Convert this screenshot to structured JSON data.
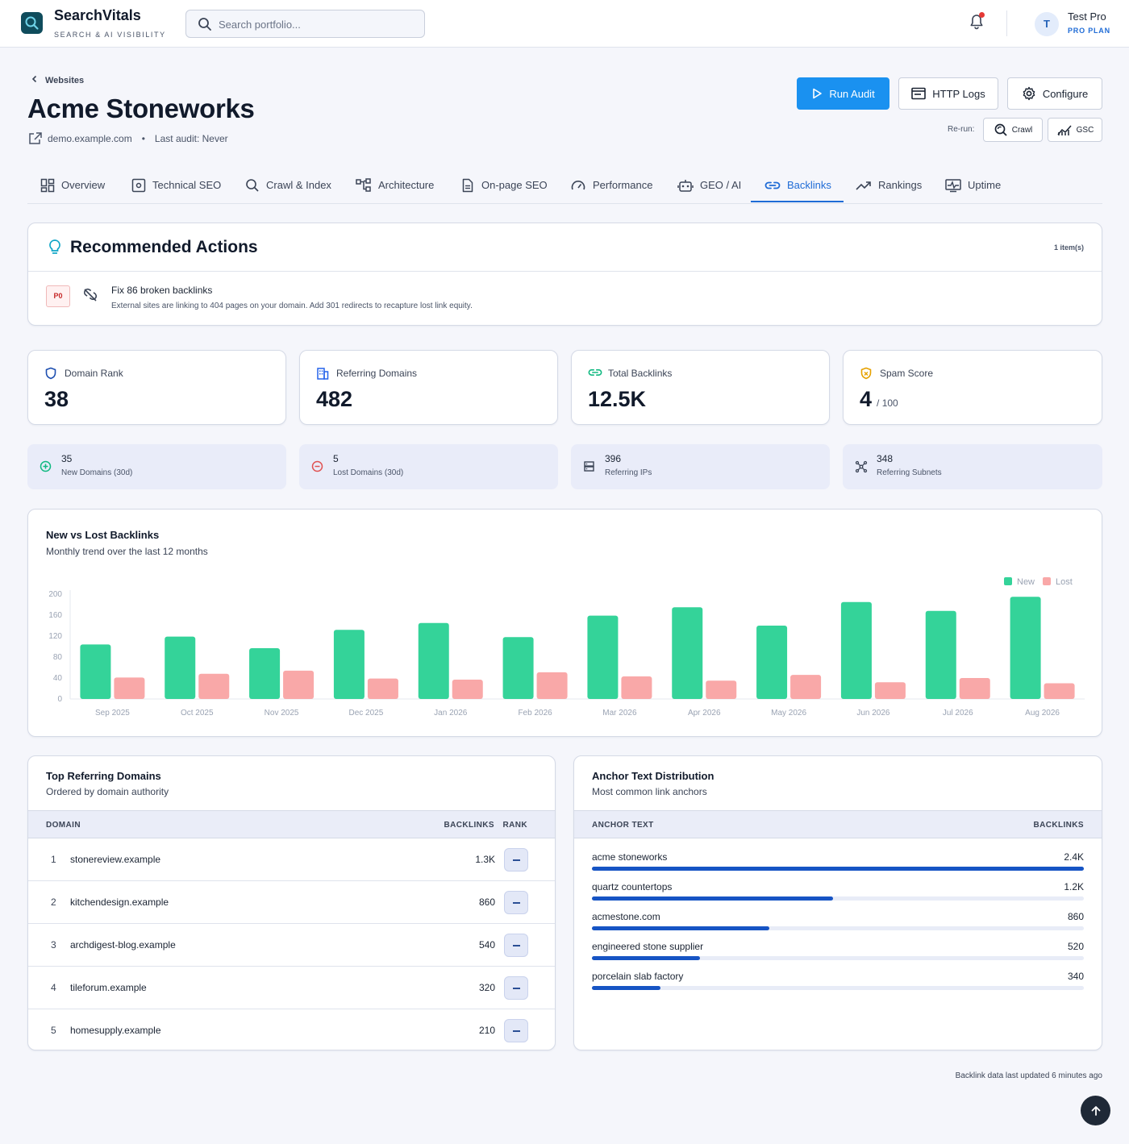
{
  "app": {
    "name": "SearchVitals",
    "tagline": "SEARCH & AI VISIBILITY"
  },
  "search": {
    "placeholder": "Search portfolio...",
    "value": ""
  },
  "user": {
    "initial": "T",
    "name": "Test Pro",
    "plan": "PRO PLAN"
  },
  "breadcrumb": {
    "back_label": "Websites"
  },
  "site": {
    "title": "Acme Stoneworks",
    "domain": "demo.example.com",
    "last_audit": "Last audit: Never"
  },
  "actions": {
    "run_audit": "Run Audit",
    "http_logs": "HTTP Logs",
    "configure": "Configure",
    "rerun_label": "Re-run:",
    "crawl": "Crawl",
    "gsc": "GSC"
  },
  "tabs": [
    {
      "label": "Overview",
      "icon": "dashboard-icon"
    },
    {
      "label": "Technical SEO",
      "icon": "settings-box-icon"
    },
    {
      "label": "Crawl & Index",
      "icon": "search-icon"
    },
    {
      "label": "Architecture",
      "icon": "sitemap-icon"
    },
    {
      "label": "On-page SEO",
      "icon": "document-icon"
    },
    {
      "label": "Performance",
      "icon": "speedometer-icon"
    },
    {
      "label": "GEO / AI",
      "icon": "robot-icon"
    },
    {
      "label": "Backlinks",
      "icon": "link-icon",
      "active": true
    },
    {
      "label": "Rankings",
      "icon": "trend-up-icon"
    },
    {
      "label": "Uptime",
      "icon": "heartbeat-icon"
    }
  ],
  "recommended": {
    "title": "Recommended Actions",
    "count": "1 item(s)",
    "items": [
      {
        "priority": "P0",
        "title": "Fix 86 broken backlinks",
        "description": "External sites are linking to 404 pages on your domain. Add 301 redirects to recapture lost link equity."
      }
    ]
  },
  "kpis": [
    {
      "label": "Domain Rank",
      "value": "38",
      "sub": "",
      "icon": "shield-icon",
      "color": "#1e4fb0"
    },
    {
      "label": "Referring Domains",
      "value": "482",
      "sub": "",
      "icon": "building-icon",
      "color": "#2563eb"
    },
    {
      "label": "Total Backlinks",
      "value": "12.5K",
      "sub": "",
      "icon": "link-icon",
      "color": "#10b981"
    },
    {
      "label": "Spam Score",
      "value": "4",
      "sub": "/ 100",
      "icon": "shield-alert-icon",
      "color": "#e6a100"
    }
  ],
  "mini_stats": [
    {
      "value": "35",
      "label": "New Domains (30d)",
      "icon": "plus-circle-icon",
      "color": "#10b981"
    },
    {
      "value": "5",
      "label": "Lost Domains (30d)",
      "icon": "minus-circle-icon",
      "color": "#e05252"
    },
    {
      "value": "396",
      "label": "Referring IPs",
      "icon": "server-icon",
      "color": "#3b4456"
    },
    {
      "value": "348",
      "label": "Referring Subnets",
      "icon": "network-icon",
      "color": "#3b4456"
    }
  ],
  "chart_data": {
    "type": "bar",
    "title": "New vs Lost Backlinks",
    "subtitle": "Monthly trend over the last 12 months",
    "categories": [
      "Sep 2025",
      "Oct 2025",
      "Nov 2025",
      "Dec 2025",
      "Jan 2026",
      "Feb 2026",
      "Mar 2026",
      "Apr 2026",
      "May 2026",
      "Jun 2026",
      "Jul 2026",
      "Aug 2026"
    ],
    "series": [
      {
        "name": "New",
        "color": "#34d399",
        "values": [
          104,
          119,
          97,
          132,
          145,
          118,
          159,
          175,
          140,
          185,
          168,
          195
        ]
      },
      {
        "name": "Lost",
        "color": "#f9a8a8",
        "values": [
          41,
          48,
          54,
          39,
          37,
          51,
          43,
          35,
          46,
          32,
          40,
          30
        ]
      }
    ],
    "ylim": [
      0,
      200
    ],
    "yticks": [
      0,
      40,
      80,
      120,
      160,
      200
    ],
    "legend": "top-right",
    "grid": false
  },
  "ref_domains": {
    "title": "Top Referring Domains",
    "subtitle": "Ordered by domain authority",
    "headers": {
      "domain": "DOMAIN",
      "backlinks": "BACKLINKS",
      "rank": "RANK"
    },
    "rows": [
      {
        "n": "1",
        "domain": "stonereview.example",
        "backlinks": "1.3K"
      },
      {
        "n": "2",
        "domain": "kitchendesign.example",
        "backlinks": "860"
      },
      {
        "n": "3",
        "domain": "archdigest-blog.example",
        "backlinks": "540"
      },
      {
        "n": "4",
        "domain": "tileforum.example",
        "backlinks": "320"
      },
      {
        "n": "5",
        "domain": "homesupply.example",
        "backlinks": "210"
      }
    ]
  },
  "anchors": {
    "title": "Anchor Text Distribution",
    "subtitle": "Most common link anchors",
    "headers": {
      "text": "ANCHOR TEXT",
      "backlinks": "BACKLINKS"
    },
    "rows": [
      {
        "text": "acme stoneworks",
        "value": "2.4K",
        "fraction": 1.0
      },
      {
        "text": "quartz countertops",
        "value": "1.2K",
        "fraction": 0.49
      },
      {
        "text": "acmestone.com",
        "value": "860",
        "fraction": 0.36
      },
      {
        "text": "engineered stone supplier",
        "value": "520",
        "fraction": 0.22
      },
      {
        "text": "porcelain slab factory",
        "value": "340",
        "fraction": 0.14
      }
    ]
  },
  "footer": {
    "note": "Backlink data last updated 6 minutes ago"
  }
}
